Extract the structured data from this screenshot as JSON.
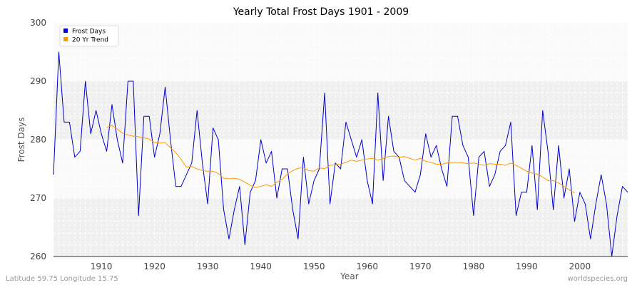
{
  "chart_data": {
    "type": "line",
    "title": "Yearly Total Frost Days 1901 - 2009",
    "xlabel": "Year",
    "ylabel": "Frost Days",
    "xlim": [
      1901,
      2009
    ],
    "ylim": [
      260,
      300
    ],
    "x_ticks": [
      1910,
      1920,
      1930,
      1940,
      1950,
      1960,
      1970,
      1980,
      1990,
      2000
    ],
    "y_ticks": [
      260,
      270,
      280,
      290,
      300
    ],
    "grid": true,
    "legend_position": "top-left",
    "colors": {
      "frost": "#0000cc",
      "trend": "#ff9900",
      "band": "#f0f0f0",
      "grid": "#dddddd"
    },
    "series": [
      {
        "name": "Frost Days",
        "x_start": 1901,
        "values": [
          274,
          295,
          283,
          283,
          277,
          278,
          290,
          281,
          285,
          281,
          278,
          286,
          280,
          276,
          290,
          290,
          267,
          284,
          284,
          277,
          281,
          289,
          280,
          272,
          272,
          274,
          276,
          285,
          276,
          269,
          282,
          280,
          268,
          263,
          268,
          272,
          262,
          271,
          273,
          280,
          276,
          278,
          270,
          275,
          275,
          268,
          263,
          277,
          269,
          273,
          275,
          288,
          269,
          276,
          275,
          283,
          280,
          277,
          280,
          273,
          269,
          288,
          273,
          284,
          278,
          277,
          273,
          272,
          271,
          274,
          281,
          277,
          279,
          275,
          272,
          284,
          284,
          279,
          277,
          267,
          277,
          278,
          272,
          274,
          278,
          279,
          283,
          267,
          271,
          271,
          279,
          268,
          285,
          278,
          268,
          279,
          270,
          275,
          266,
          271,
          269,
          263,
          269,
          274,
          269,
          260,
          267,
          272,
          271
        ]
      },
      {
        "name": "20 Yr Trend",
        "x_start": 1911,
        "values": [
          282.1,
          282.4,
          281.8,
          281.1,
          280.8,
          280.6,
          280.5,
          280.3,
          280.1,
          279.5,
          279.4,
          279.5,
          278.6,
          277.8,
          276.6,
          275.3,
          275.4,
          275.0,
          274.7,
          274.6,
          274.6,
          274.2,
          273.4,
          273.3,
          273.4,
          273.2,
          272.7,
          272.2,
          271.8,
          272.0,
          272.3,
          272.0,
          272.7,
          273.2,
          274.1,
          274.7,
          275.1,
          275.2,
          274.7,
          274.6,
          275.2,
          275.0,
          275.6,
          275.7,
          275.8,
          276.1,
          276.5,
          276.3,
          276.5,
          276.7,
          276.8,
          276.5,
          276.8,
          277.1,
          277.2,
          277.0,
          277.1,
          276.8,
          276.5,
          276.8,
          276.3,
          276.1,
          275.8,
          275.8,
          276.0,
          276.1,
          276.1,
          276.0,
          275.9,
          276.0,
          275.8,
          275.6,
          275.9,
          275.8,
          275.8,
          275.6,
          276.0,
          275.6,
          275.1,
          274.6,
          274.3,
          274.1,
          273.6,
          273.0,
          273.0,
          272.6,
          272.0,
          271.4,
          270.9
        ]
      }
    ],
    "footer_left": "Latitude 59.75 Longitude 15.75",
    "footer_right": "worldspecies.org"
  }
}
